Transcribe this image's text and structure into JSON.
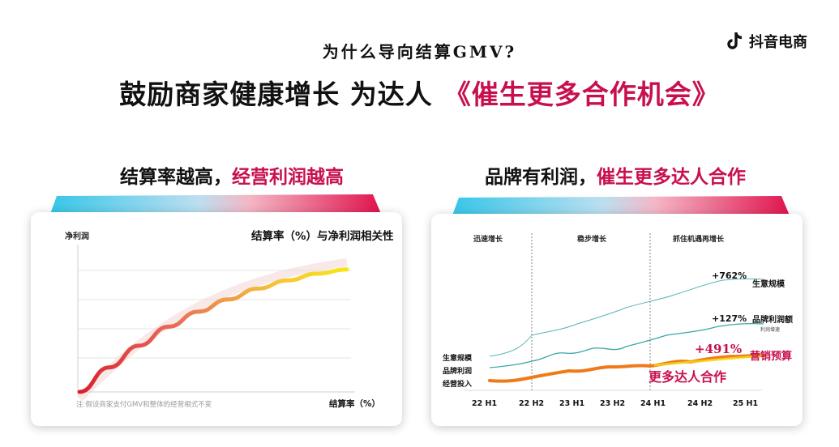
{
  "brand": {
    "name": "抖音电商",
    "icon": "douyin-note-icon"
  },
  "header": {
    "kicker": "为什么导向结算GMV?",
    "headline_main": "鼓励商家健康增长  为达人",
    "headline_accent": "《催生更多合作机会》"
  },
  "left_panel": {
    "title_main": "结算率越高，",
    "title_accent": "经营利润越高",
    "chart_title": "结算率（%）与净利润相关性",
    "y_axis_label": "净利润",
    "x_axis_label": "结算率（%）",
    "footnote": "注:假设商家支付GMV和整体的经营相式不变"
  },
  "right_panel": {
    "title_main": "品牌有利润，",
    "title_accent": "催生更多达人合作",
    "phases": [
      "迅速增长",
      "稳步增长",
      "抓住机遇再增长"
    ],
    "series_labels_left": [
      "生意规模",
      "品牌利润",
      "经营投入"
    ],
    "series_labels_right": [
      "生意规模",
      "品牌利润额",
      "营销预算"
    ],
    "sub_note": "利润增速",
    "growth_labels": [
      "+762%",
      "+127%",
      "+491%"
    ],
    "callout": "更多达人合作"
  },
  "colors": {
    "accent": "#c8104e",
    "teal": "#3aa6a6",
    "orange": "#f07a1a",
    "yellow": "#f5d80f",
    "red": "#d8202c"
  },
  "chart_data": [
    {
      "type": "line",
      "title": "结算率（%）与净利润相关性",
      "xlabel": "结算率（%）",
      "ylabel": "净利润",
      "series": [
        {
          "values": [
            0,
            18,
            34,
            48,
            59,
            68,
            76,
            82,
            87,
            90
          ]
        }
      ],
      "grid": true
    },
    {
      "type": "line",
      "categories": [
        "22 H1",
        "22 H2",
        "23 H1",
        "23 H2",
        "24 H1",
        "24 H2",
        "25 H1"
      ],
      "series": [
        {
          "name": "生意规模",
          "values": [
            100,
            260,
            380,
            500,
            620,
            760,
            862
          ]
        },
        {
          "name": "品牌利润额",
          "values": [
            100,
            140,
            160,
            180,
            195,
            215,
            227
          ]
        },
        {
          "name": "营销预算",
          "values": [
            100,
            180,
            260,
            330,
            410,
            500,
            591
          ]
        }
      ],
      "annotations": [
        "+762%",
        "+127%",
        "+491%"
      ]
    }
  ]
}
